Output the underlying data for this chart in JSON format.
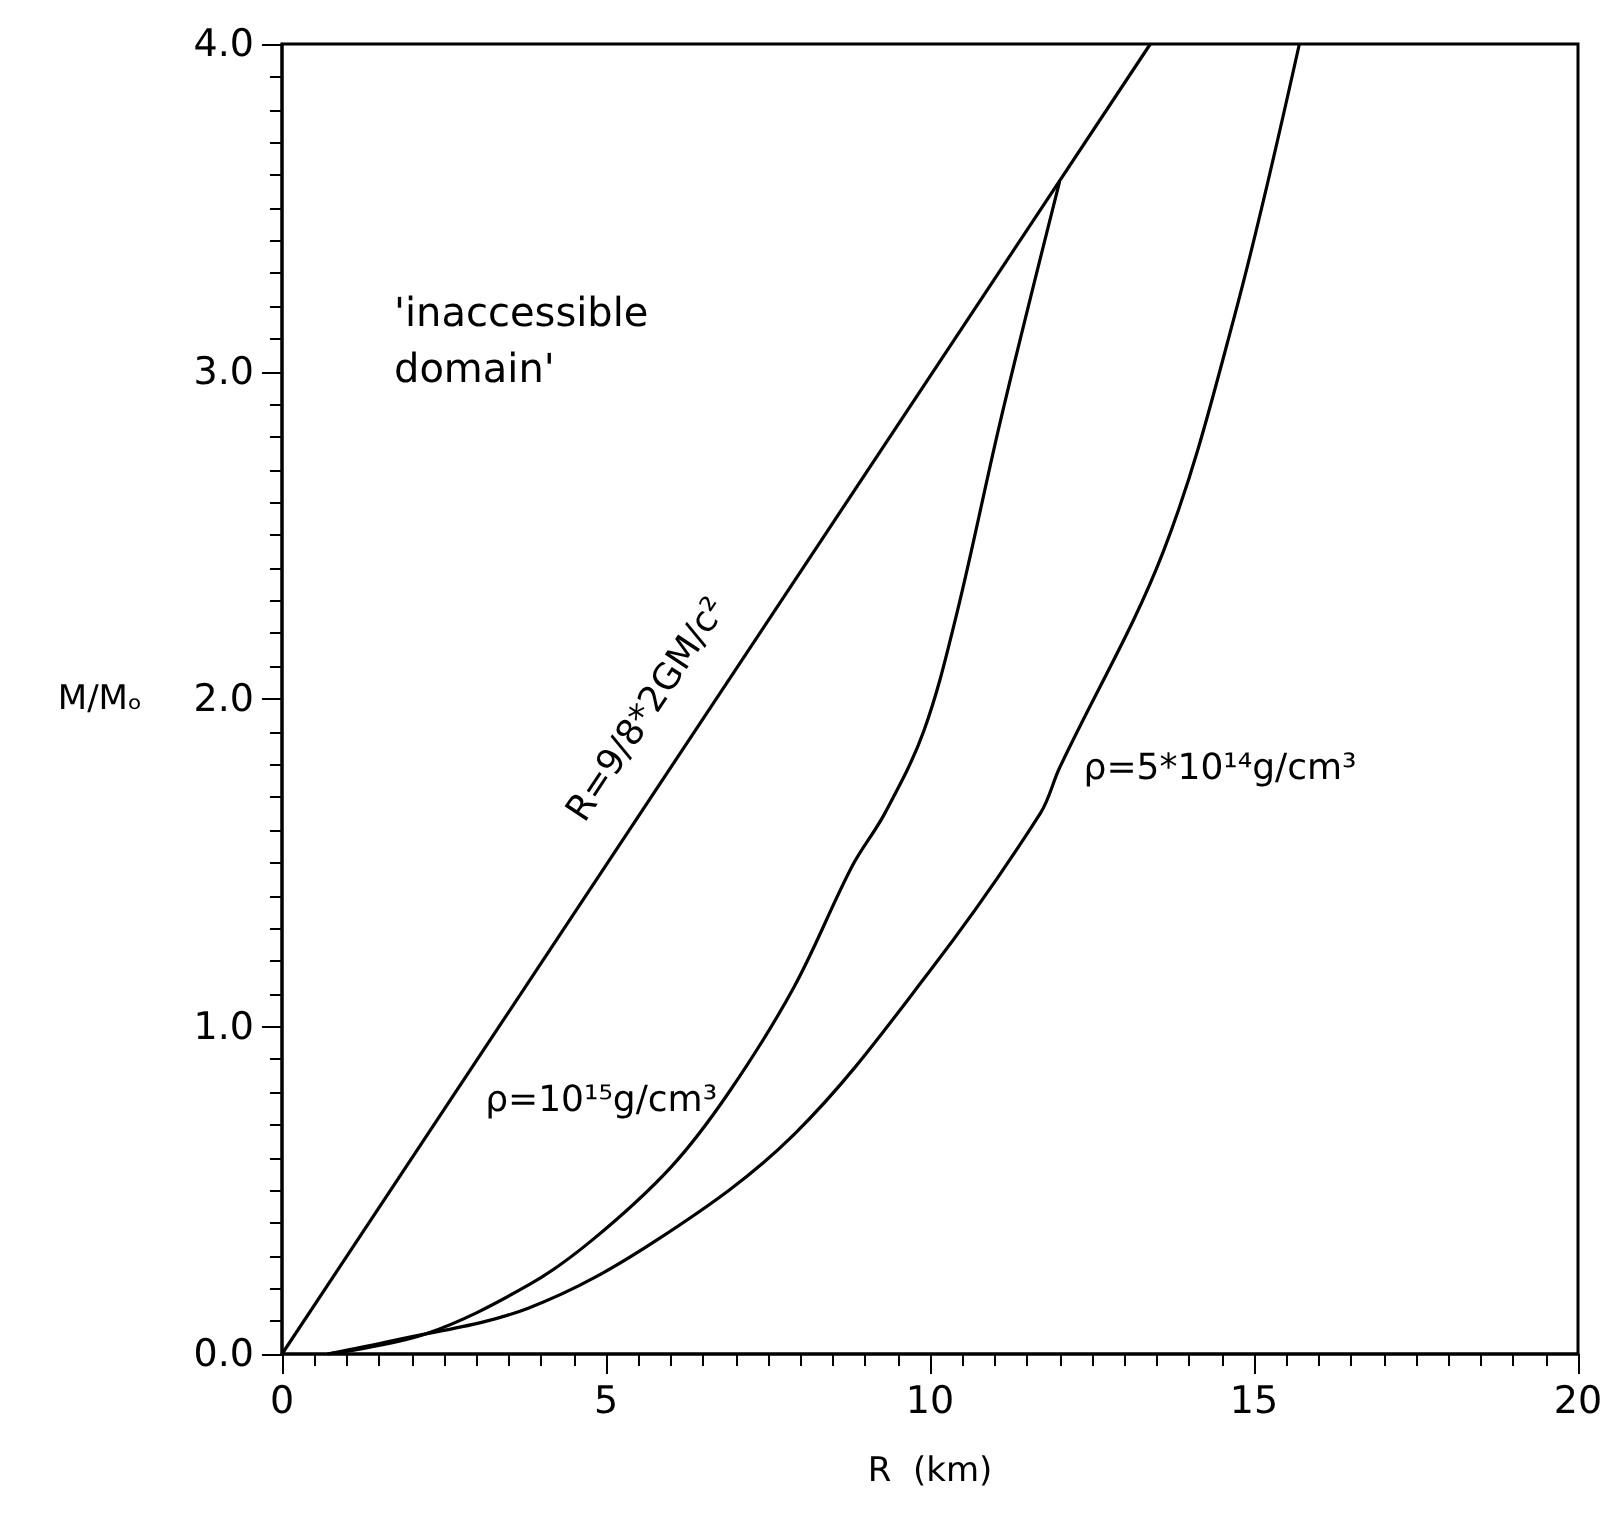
{
  "chart_data": {
    "type": "line",
    "xlabel": "R  (km)",
    "ylabel": "M/Mₒ",
    "xlim": [
      0,
      20
    ],
    "xticks": [
      0,
      5,
      10,
      15,
      20
    ],
    "ylim": [
      0,
      4
    ],
    "yticks": [
      {
        "value": 0,
        "label": "0.0"
      },
      {
        "value": 1,
        "label": "1.0"
      },
      {
        "value": 2,
        "label": "2.0"
      },
      {
        "value": 3,
        "label": "3.0"
      },
      {
        "value": 4,
        "label": "4.0"
      }
    ],
    "series": [
      {
        "name": "R=9/8*2GM/c²",
        "color": "#000000",
        "x": [
          0,
          13.4
        ],
        "values": [
          0,
          4.0
        ]
      },
      {
        "name": "ρ=10¹⁵g/cm³",
        "color": "#000000",
        "x": [
          0.7,
          2.2,
          3.8,
          4.8,
          6.0,
          6.9,
          7.9,
          8.8,
          9.3,
          9.9,
          10.4,
          11.1,
          12.0
        ],
        "values": [
          0,
          0.06,
          0.21,
          0.35,
          0.57,
          0.8,
          1.12,
          1.49,
          1.65,
          1.9,
          2.25,
          2.86,
          3.58
        ]
      },
      {
        "name": "ρ=5*10¹⁴g/cm³",
        "color": "#000000",
        "x": [
          0.7,
          1.7,
          3.8,
          5.8,
          7.9,
          10.0,
          11.7,
          12.0,
          13.6,
          14.7,
          15.7
        ],
        "values": [
          0,
          0.04,
          0.14,
          0.35,
          0.67,
          1.17,
          1.65,
          1.79,
          2.45,
          3.17,
          4.0
        ]
      }
    ],
    "annotations": [
      "'inaccessible\ndomain'"
    ],
    "grid": false,
    "legend": false,
    "marker": "none",
    "line_style": "solid"
  }
}
